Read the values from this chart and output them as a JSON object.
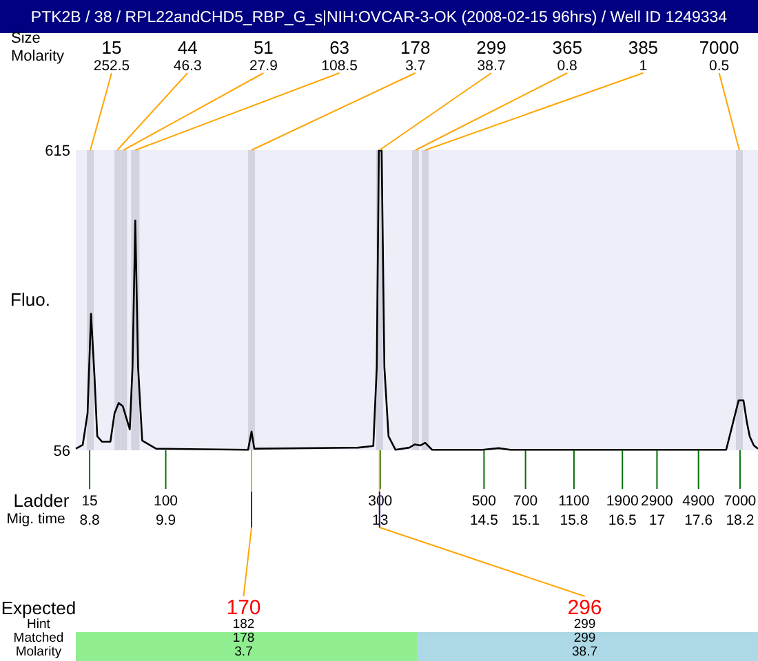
{
  "chart_data": {
    "type": "line",
    "title": "PTK2B / 38 / RPL22andCHD5_RBP_G_s|NIH:OVCAR-3-OK (2008-02-15 96hrs) / Well ID 1249334",
    "ylabel": "Fluo.",
    "xlabel": "Mig. time",
    "series": [
      {
        "color": "#000000",
        "x": [
          8.6,
          8.7,
          8.77,
          8.82,
          8.87,
          8.91,
          8.98,
          9.1,
          9.16,
          9.22,
          9.28,
          9.38,
          9.42,
          9.46,
          9.5,
          9.56,
          9.76,
          11.09,
          11.14,
          11.18,
          12.68,
          12.9,
          12.95,
          12.98,
          13.02,
          13.06,
          13.12,
          13.22,
          13.42,
          13.5,
          13.58,
          13.65,
          13.75,
          14.48,
          14.71,
          14.88,
          18.0,
          18.1,
          18.18,
          18.25,
          18.3,
          18.34,
          18.4,
          18.46
        ],
        "values": [
          59,
          66,
          125,
          310,
          194,
          82,
          72,
          72,
          125,
          144,
          138,
          95,
          211,
          484,
          211,
          74,
          59,
          57,
          91,
          59,
          61,
          64,
          211,
          614,
          614,
          211,
          82,
          57,
          61,
          67,
          65,
          70,
          57,
          57,
          60,
          57,
          57,
          108,
          149,
          149,
          108,
          82,
          65,
          59
        ]
      }
    ],
    "xlim": [
      8.6,
      18.46
    ],
    "ylim": [
      56,
      615
    ],
    "yticks": [
      56,
      615
    ],
    "xticks": [
      8.8,
      9.9,
      13,
      14.5,
      15.1,
      15.8,
      16.5,
      17,
      17.6,
      18.2
    ],
    "bands": [
      {
        "axis": "x",
        "from": 8.76,
        "to": 8.86,
        "color": "#d3d3e0"
      },
      {
        "axis": "x",
        "from": 9.16,
        "to": 9.24,
        "color": "#d3d3e0"
      },
      {
        "axis": "x",
        "from": 9.24,
        "to": 9.34,
        "color": "#d3d3e0"
      },
      {
        "axis": "x",
        "from": 9.4,
        "to": 9.52,
        "color": "#d3d3e0"
      },
      {
        "axis": "x",
        "from": 11.09,
        "to": 11.19,
        "color": "#d3d3e0"
      },
      {
        "axis": "x",
        "from": 12.94,
        "to": 13.04,
        "color": "#d3d3e0"
      },
      {
        "axis": "x",
        "from": 13.46,
        "to": 13.56,
        "color": "#d3d3e0"
      },
      {
        "axis": "x",
        "from": 13.6,
        "to": 13.7,
        "color": "#d3d3e0"
      },
      {
        "axis": "x",
        "from": 18.14,
        "to": 18.24,
        "color": "#d3d3e0"
      }
    ],
    "annotations": [
      "Size",
      "Molarity",
      {
        "text": "15",
        "x": 8.81,
        "y": 615
      },
      "252.5",
      {
        "text": "44",
        "x": 9.2,
        "y": 615
      },
      "46.3",
      {
        "text": "51",
        "x": 9.29,
        "y": 615
      },
      "27.9",
      {
        "text": "63",
        "x": 9.46,
        "y": 615
      },
      "108.5",
      {
        "text": "178",
        "x": 11.14,
        "y": 615
      },
      "3.7",
      {
        "text": "299",
        "x": 12.99,
        "y": 615
      },
      "38.7",
      {
        "text": "365",
        "x": 13.51,
        "y": 615
      },
      "0.8",
      {
        "text": "385",
        "x": 13.65,
        "y": 615
      },
      "1",
      {
        "text": "7000",
        "x": 18.19,
        "y": 615
      },
      "0.5",
      "Ladder",
      "15",
      "100",
      "300",
      "500",
      "700",
      "1100",
      "1900",
      "2900",
      "4900",
      "7000",
      "Expected",
      "Hint",
      "Matched",
      "Molarity",
      {
        "text": "170",
        "x": 11.14,
        "y": 56
      },
      "182",
      "178",
      "3.7",
      {
        "text": "296",
        "x": 12.99,
        "y": 56
      },
      "299",
      "299",
      "38.7"
    ]
  }
}
